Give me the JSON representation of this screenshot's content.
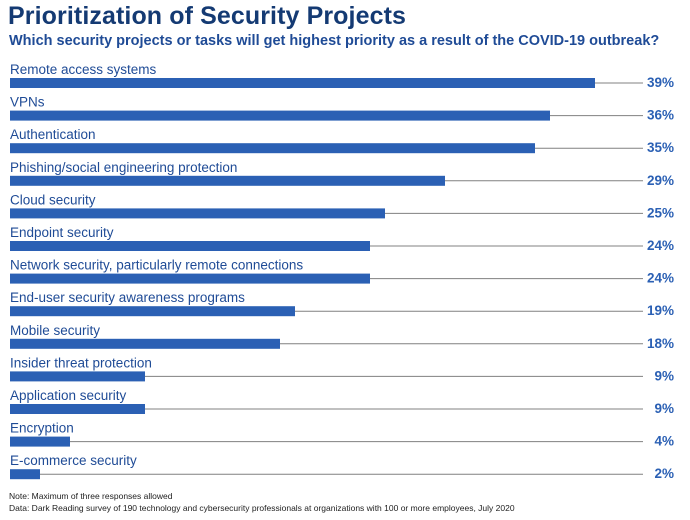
{
  "title": "Prioritization of Security Projects",
  "subtitle": "Which security projects or tasks will get highest priority as a result of the COVID-19 outbreak?",
  "note": "Note: Maximum of three responses allowed",
  "source": "Data: Dark Reading survey of 190 technology and cybersecurity professionals at organizations with 100 or more employees, July 2020",
  "colors": {
    "bar": "#2b60b4",
    "title": "#143a73",
    "subtitle": "#1f4b96",
    "value": "#2b60b4",
    "label": "#1f4b96",
    "line": "#808080"
  },
  "chart_data": {
    "type": "bar",
    "orientation": "horizontal",
    "title": "Prioritization of Security Projects",
    "subtitle": "Which security projects or tasks will get highest priority as a result of the COVID-19 outbreak?",
    "unit": "%",
    "xlim": [
      0,
      41
    ],
    "categories": [
      "Remote access systems",
      "VPNs",
      "Authentication",
      "Phishing/social engineering protection",
      "Cloud security",
      "Endpoint security",
      "Network security, particularly remote connections",
      "End-user security awareness programs",
      "Mobile security",
      "Insider threat protection",
      "Application security",
      "Encryption",
      "E-commerce security"
    ],
    "values": [
      39,
      36,
      35,
      29,
      25,
      24,
      24,
      19,
      18,
      9,
      9,
      4,
      2
    ],
    "value_labels": [
      "39%",
      "36%",
      "35%",
      "29%",
      "25%",
      "24%",
      "24%",
      "19%",
      "18%",
      "9%",
      "9%",
      "4%",
      "2%"
    ]
  }
}
